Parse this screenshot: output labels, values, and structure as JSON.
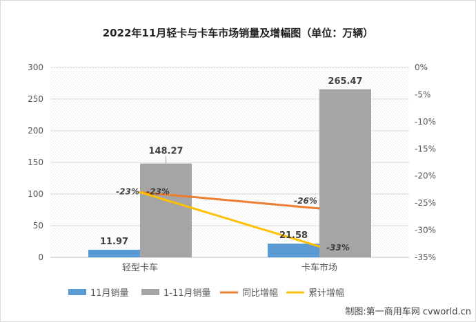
{
  "chart_data": {
    "type": "bar",
    "title": "2022年11月轻卡与卡车市场销量及增幅图（单位：万辆）",
    "categories": [
      "轻型卡车",
      "卡车市场"
    ],
    "series": [
      {
        "name": "11月销量",
        "type": "bar",
        "axis": "left",
        "color": "#5B9BD5",
        "values": [
          11.97,
          21.58
        ],
        "labels": [
          "11.97",
          "21.58"
        ]
      },
      {
        "name": "1-11月销量",
        "type": "bar",
        "axis": "left",
        "color": "#A5A5A5",
        "values": [
          148.27,
          265.47
        ],
        "labels": [
          "148.27",
          "265.47"
        ]
      },
      {
        "name": "同比增幅",
        "type": "line",
        "axis": "right",
        "color": "#ED7D31",
        "values": [
          -23,
          -26
        ],
        "labels": [
          "-23%",
          "-26%"
        ]
      },
      {
        "name": "累计增幅",
        "type": "line",
        "axis": "right",
        "color": "#FFC000",
        "values": [
          -23,
          -33
        ],
        "labels": [
          "-23%",
          "-33%"
        ]
      }
    ],
    "ylim": [
      0,
      300
    ],
    "yticks": [
      "300",
      "250",
      "200",
      "150",
      "100",
      "50",
      "0"
    ],
    "y2lim": [
      -35,
      0
    ],
    "y2ticks": [
      "0%",
      "-5%",
      "-10%",
      "-15%",
      "-20%",
      "-25%",
      "-30%",
      "-35%"
    ],
    "grid": true,
    "legend_position": "bottom"
  },
  "watermark": "制图:第一商用车网 cvworld.cn"
}
